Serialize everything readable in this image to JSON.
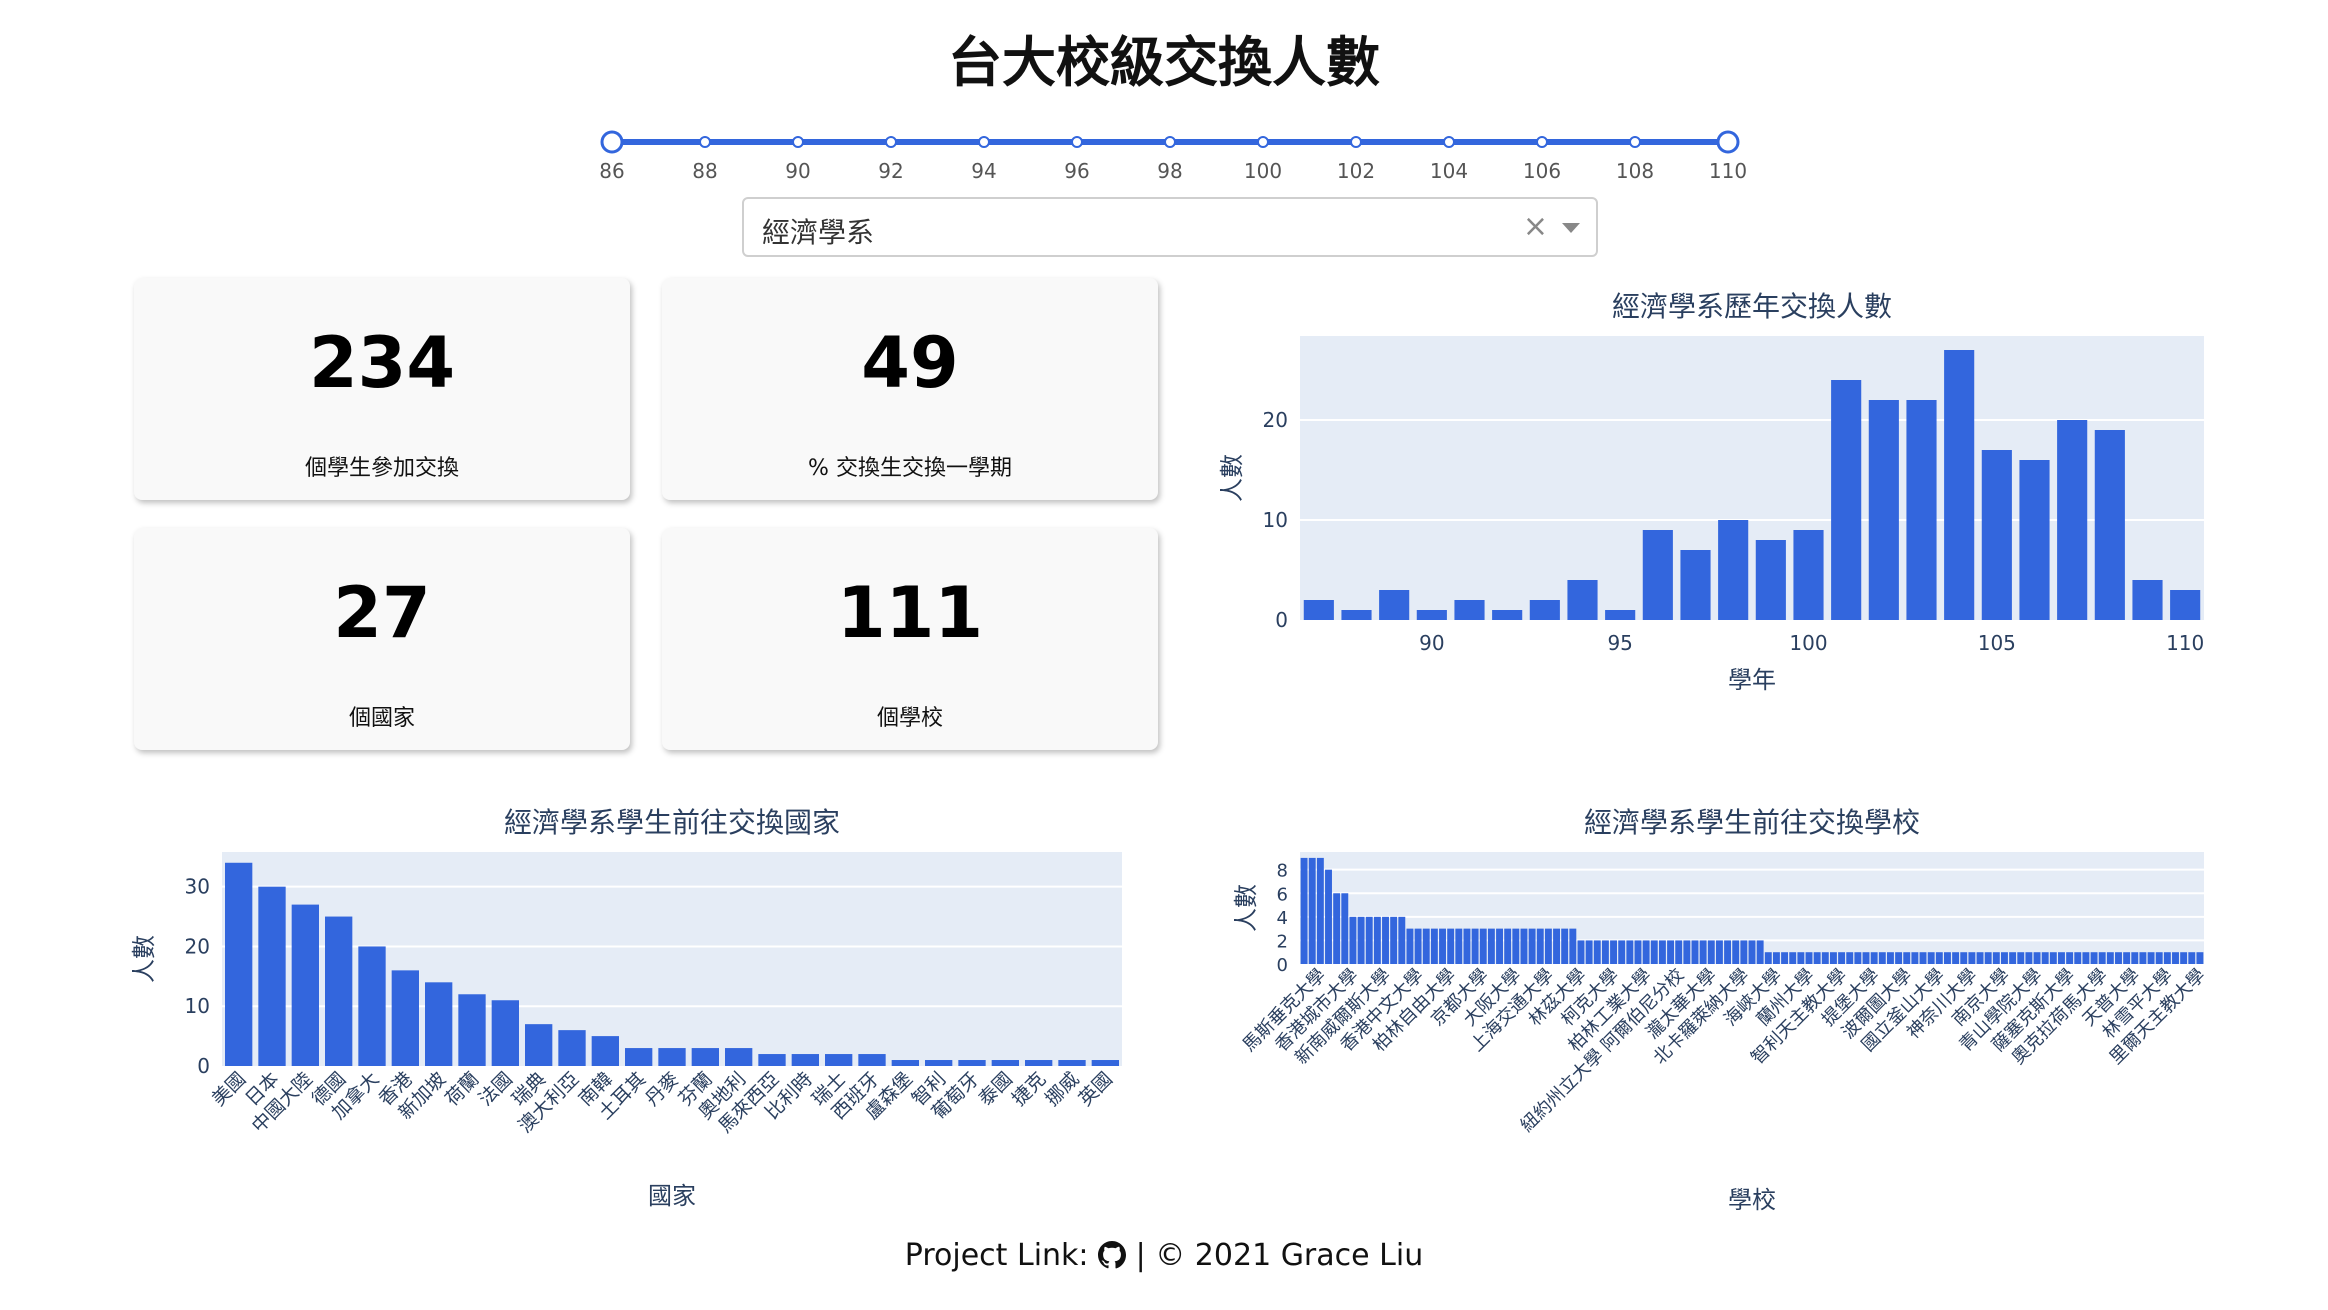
{
  "page": {
    "title": "台大校級交換人數"
  },
  "slider": {
    "ticks": [
      "86",
      "88",
      "90",
      "92",
      "94",
      "96",
      "98",
      "100",
      "102",
      "104",
      "106",
      "108",
      "110"
    ],
    "range": [
      86,
      110
    ]
  },
  "dropdown": {
    "value": "經濟學系"
  },
  "cards": [
    {
      "value": "234",
      "label": "個學生參加交換"
    },
    {
      "value": "49",
      "label": "% 交換生交換一學期"
    },
    {
      "value": "27",
      "label": "個國家"
    },
    {
      "value": "111",
      "label": "個學校"
    }
  ],
  "footer": {
    "prefix": "Project Link:",
    "suffix": "| © 2021 Grace Liu"
  },
  "colors": {
    "bar": "#3366dd",
    "plot_bg": "#e5ecf6",
    "text": "#2a3f5f"
  },
  "chart_data": [
    {
      "type": "bar",
      "title": "經濟學系歷年交換人數",
      "xlabel": "學年",
      "ylabel": "人數",
      "x": [
        87,
        88,
        89,
        90,
        91,
        92,
        93,
        94,
        95,
        96,
        97,
        98,
        99,
        100,
        101,
        102,
        103,
        104,
        105,
        106,
        107,
        108,
        109,
        110
      ],
      "values": [
        2,
        1,
        3,
        1,
        2,
        1,
        2,
        4,
        1,
        9,
        7,
        10,
        8,
        9,
        24,
        22,
        22,
        27,
        17,
        16,
        20,
        19,
        4,
        3
      ],
      "xticks": [
        90,
        95,
        100,
        105,
        110
      ],
      "yticks": [
        0,
        10,
        20
      ],
      "ylim": [
        0,
        28.4
      ],
      "grid": true
    },
    {
      "type": "bar",
      "title": "經濟學系學生前往交換國家",
      "xlabel": "國家",
      "ylabel": "人數",
      "categories": [
        "美國",
        "日本",
        "中國大陸",
        "德國",
        "加拿大",
        "香港",
        "新加坡",
        "荷蘭",
        "法國",
        "瑞典",
        "澳大利亞",
        "南韓",
        "土耳其",
        "丹麥",
        "芬蘭",
        "奧地利",
        "馬來西亞",
        "比利時",
        "瑞士",
        "西班牙",
        "盧森堡",
        "智利",
        "葡萄牙",
        "泰國",
        "捷克",
        "挪威",
        "英國"
      ],
      "values": [
        34,
        30,
        27,
        25,
        20,
        16,
        14,
        12,
        11,
        7,
        6,
        5,
        3,
        3,
        3,
        3,
        2,
        2,
        2,
        2,
        1,
        1,
        1,
        1,
        1,
        1,
        1
      ],
      "yticks": [
        0,
        10,
        20,
        30
      ],
      "ylim": [
        0,
        35.8
      ],
      "grid": true
    },
    {
      "type": "bar",
      "title": "經濟學系學生前往交換學校",
      "xlabel": "學校",
      "ylabel": "人數",
      "values": [
        9,
        9,
        9,
        8,
        6,
        6,
        4,
        4,
        4,
        4,
        4,
        4,
        4,
        3,
        3,
        3,
        3,
        3,
        3,
        3,
        3,
        3,
        3,
        3,
        3,
        3,
        3,
        3,
        3,
        3,
        3,
        3,
        3,
        3,
        2,
        2,
        2,
        2,
        2,
        2,
        2,
        2,
        2,
        2,
        2,
        2,
        2,
        2,
        2,
        2,
        2,
        2,
        2,
        2,
        2,
        2,
        2,
        1,
        1,
        1,
        1,
        1,
        1,
        1,
        1,
        1,
        1,
        1,
        1,
        1,
        1,
        1,
        1,
        1,
        1,
        1,
        1,
        1,
        1,
        1,
        1,
        1,
        1,
        1,
        1,
        1,
        1,
        1,
        1,
        1,
        1,
        1,
        1,
        1,
        1,
        1,
        1,
        1,
        1,
        1,
        1,
        1,
        1,
        1,
        1,
        1,
        1,
        1,
        1,
        1,
        1
      ],
      "tick_labels": [
        {
          "i": 2,
          "label": "馬斯垂克大學"
        },
        {
          "i": 6,
          "label": "香港城市大學"
        },
        {
          "i": 10,
          "label": "新南威爾斯大學"
        },
        {
          "i": 14,
          "label": "香港中文大學"
        },
        {
          "i": 18,
          "label": "柏林自由大學"
        },
        {
          "i": 22,
          "label": "京都大學"
        },
        {
          "i": 26,
          "label": "大阪大學"
        },
        {
          "i": 30,
          "label": "上海交通大學"
        },
        {
          "i": 34,
          "label": "林茲大學"
        },
        {
          "i": 38,
          "label": "柯克大學"
        },
        {
          "i": 42,
          "label": "柏林工業大學"
        },
        {
          "i": 46,
          "label": "紐約州立大學 阿爾伯尼分校"
        },
        {
          "i": 50,
          "label": "瀧太華大學"
        },
        {
          "i": 54,
          "label": "北卡羅萊納大學"
        },
        {
          "i": 58,
          "label": "海峽大學"
        },
        {
          "i": 62,
          "label": "蘭州大學"
        },
        {
          "i": 66,
          "label": "智利天主教大學"
        },
        {
          "i": 70,
          "label": "提堡大學"
        },
        {
          "i": 74,
          "label": "波爾圖大學"
        },
        {
          "i": 78,
          "label": "國立釜山大學"
        },
        {
          "i": 82,
          "label": "神奈川大學"
        },
        {
          "i": 86,
          "label": "南京大學"
        },
        {
          "i": 90,
          "label": "青山學院大學"
        },
        {
          "i": 94,
          "label": "薩塞克斯大學"
        },
        {
          "i": 98,
          "label": "奧克拉荷馬大學"
        },
        {
          "i": 102,
          "label": "天普大學"
        },
        {
          "i": 106,
          "label": "林雪平大學"
        },
        {
          "i": 110,
          "label": "里爾天主教大學"
        }
      ],
      "yticks": [
        0,
        2,
        4,
        6,
        8
      ],
      "ylim": [
        0,
        9.5
      ],
      "grid": true
    }
  ]
}
